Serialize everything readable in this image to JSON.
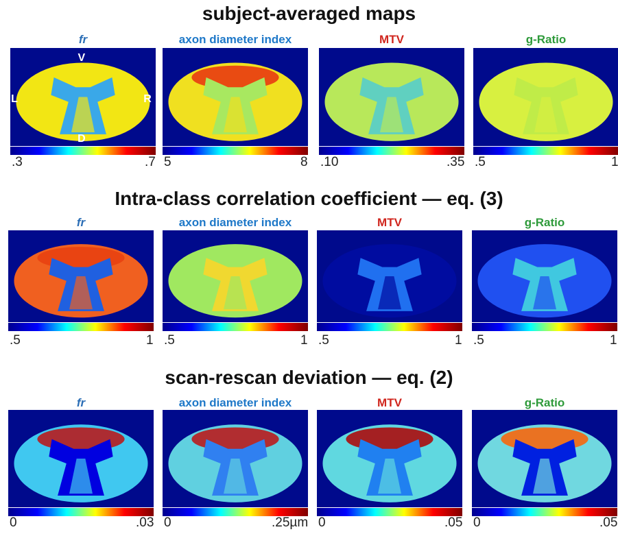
{
  "rows": [
    {
      "title": "subject-averaged maps",
      "panels": [
        {
          "label": "fr",
          "min": ".3",
          "max": ".7",
          "annotations": [
            "V",
            "L",
            "R",
            "D"
          ]
        },
        {
          "label": "axon diameter index",
          "min": "5",
          "max": "8"
        },
        {
          "label": "MTV",
          "min": ".10",
          "max": ".35"
        },
        {
          "label": "g-Ratio",
          "min": ".5",
          "max": "1"
        }
      ]
    },
    {
      "title": "Intra-class correlation coefficient — eq. (3)",
      "panels": [
        {
          "label": "fr",
          "min": ".5",
          "max": "1"
        },
        {
          "label": "axon diameter index",
          "min": ".5",
          "max": "1"
        },
        {
          "label": "MTV",
          "min": ".5",
          "max": "1"
        },
        {
          "label": "g-Ratio",
          "min": ".5",
          "max": "1"
        }
      ]
    },
    {
      "title": "scan-rescan deviation — eq. (2)",
      "panels": [
        {
          "label": "fr",
          "min": "0",
          "max": ".03"
        },
        {
          "label": "axon diameter index",
          "min": "0",
          "max": ".25µm"
        },
        {
          "label": "MTV",
          "min": "0",
          "max": ".05"
        },
        {
          "label": "g-Ratio",
          "min": "0",
          "max": ".05"
        }
      ]
    }
  ]
}
